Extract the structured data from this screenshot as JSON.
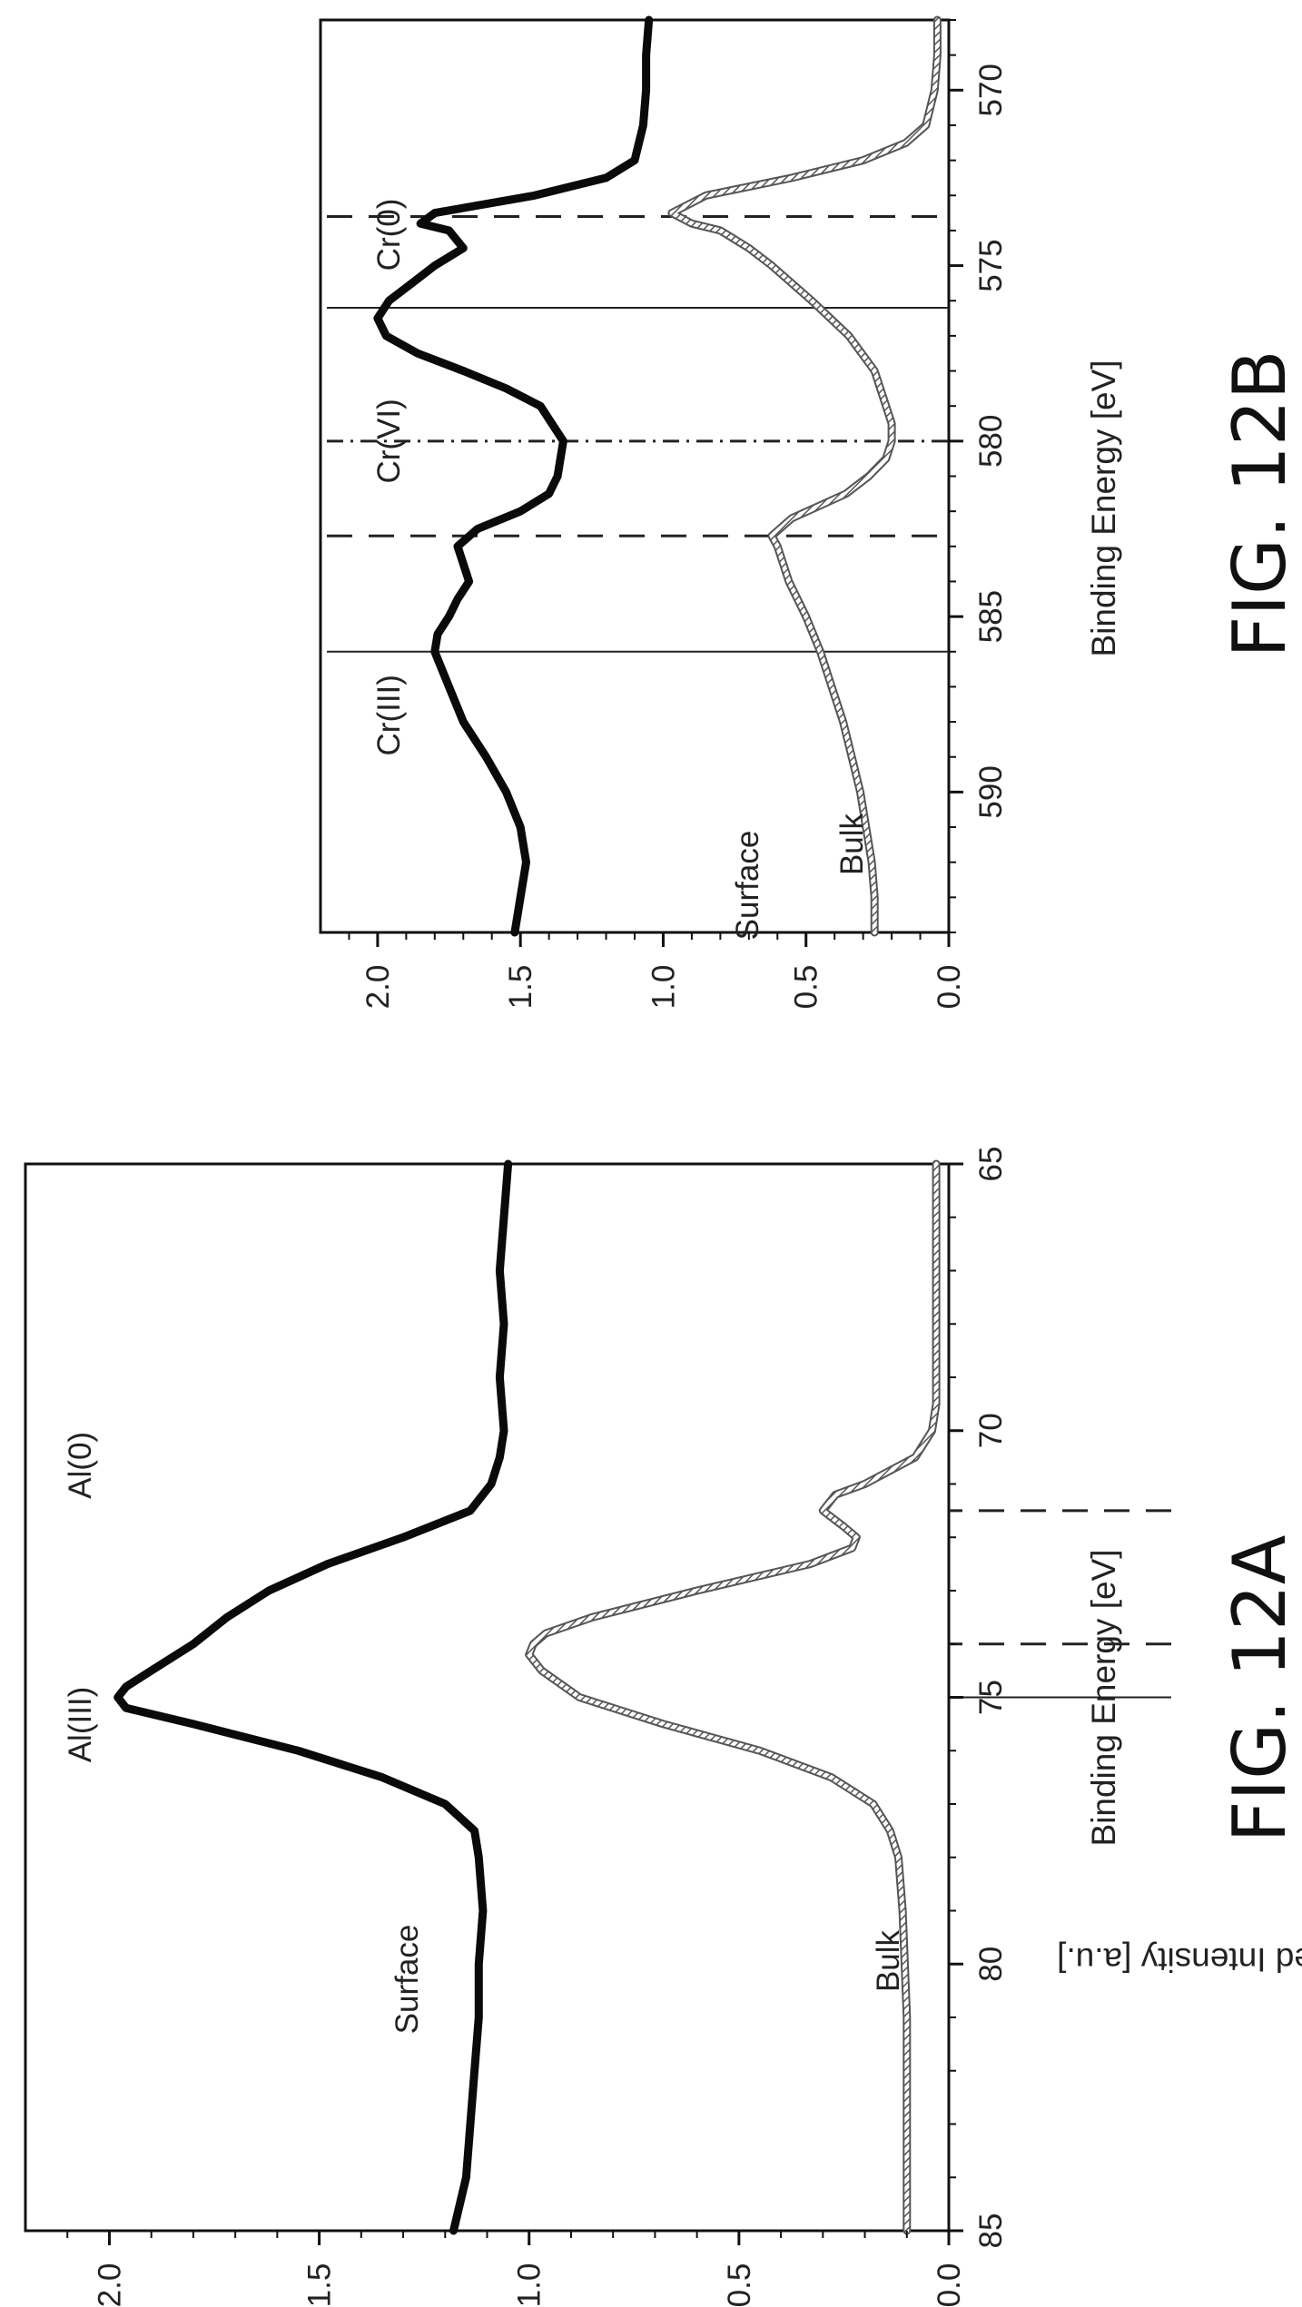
{
  "figures": [
    {
      "caption": "FIG. 12A",
      "chart_data": {
        "type": "line",
        "xlabel": "Binding Energy [eV]",
        "ylabel": "Normalized Intensity [a.u.]",
        "xlim": [
          85,
          65
        ],
        "ylim": [
          0,
          2.2
        ],
        "x_ticks": [
          "85",
          "80",
          "75",
          "70",
          "65"
        ],
        "y_ticks": [
          "0.0",
          "0.5",
          "1.0",
          "1.5",
          "2.0"
        ],
        "grid": false,
        "orientation": "rotated 90° counter-clockwise",
        "reference_lines": [
          {
            "x": 75,
            "style": "solid",
            "label": "Al(III)"
          },
          {
            "x": 74,
            "style": "dashed",
            "label": ""
          },
          {
            "x": 71.5,
            "style": "dashed",
            "label": "Al(0)"
          }
        ],
        "series": [
          {
            "name": "Surface",
            "style": "thick-black",
            "x": [
              85,
              84,
              83,
              82,
              81,
              80,
              79,
              78,
              77.5,
              77,
              76.5,
              76,
              75.5,
              75.2,
              75,
              74.8,
              74.5,
              74,
              73.5,
              73,
              72.5,
              72,
              71.5,
              71,
              70.5,
              70,
              69,
              68,
              67,
              66,
              65
            ],
            "values": [
              1.18,
              1.15,
              1.14,
              1.13,
              1.12,
              1.12,
              1.11,
              1.12,
              1.13,
              1.2,
              1.35,
              1.55,
              1.8,
              1.96,
              1.98,
              1.96,
              1.9,
              1.8,
              1.72,
              1.62,
              1.48,
              1.3,
              1.14,
              1.09,
              1.07,
              1.06,
              1.07,
              1.06,
              1.07,
              1.06,
              1.05
            ]
          },
          {
            "name": "Bulk",
            "style": "hatched-gray",
            "x": [
              85,
              83,
              81,
              79,
              78,
              77.5,
              77,
              76.5,
              76,
              75.5,
              75,
              74.5,
              74.2,
              74,
              73.8,
              73.5,
              73,
              72.5,
              72.2,
              72,
              71.8,
              71.5,
              71.2,
              71,
              70.5,
              70,
              69.5,
              69,
              68,
              67,
              66,
              65
            ],
            "values": [
              0.1,
              0.1,
              0.1,
              0.11,
              0.12,
              0.14,
              0.18,
              0.28,
              0.45,
              0.68,
              0.88,
              0.97,
              1.0,
              0.99,
              0.96,
              0.85,
              0.6,
              0.33,
              0.23,
              0.22,
              0.25,
              0.3,
              0.27,
              0.2,
              0.08,
              0.04,
              0.03,
              0.03,
              0.03,
              0.03,
              0.03,
              0.03
            ]
          }
        ]
      }
    },
    {
      "caption": "FIG. 12B",
      "chart_data": {
        "type": "line",
        "xlabel": "Binding Energy [eV]",
        "ylabel": "",
        "xlim": [
          594,
          568
        ],
        "ylim": [
          0,
          2.2
        ],
        "x_ticks": [
          "590",
          "585",
          "580",
          "575",
          "570"
        ],
        "y_ticks": [
          "0.0",
          "0.5",
          "1.0",
          "1.5",
          "2.0"
        ],
        "grid": false,
        "orientation": "rotated 90° counter-clockwise",
        "reference_lines": [
          {
            "x": 586,
            "style": "solid",
            "label": "Cr(III)"
          },
          {
            "x": 582.7,
            "style": "dashed",
            "label": ""
          },
          {
            "x": 580,
            "style": "dash-dot",
            "label": "Cr(VI)"
          },
          {
            "x": 576.2,
            "style": "solid",
            "label": ""
          },
          {
            "x": 573.6,
            "style": "dashed",
            "label": "Cr(0)"
          }
        ],
        "series": [
          {
            "name": "Surface",
            "style": "thick-black",
            "x": [
              594,
              593,
              592,
              591,
              590,
              589,
              588,
              587,
              586,
              585.5,
              585,
              584.5,
              584,
              583.5,
              583,
              582.5,
              582,
              581.5,
              581,
              580,
              579,
              578.5,
              578,
              577.5,
              577,
              576.5,
              576,
              575.5,
              575,
              574.5,
              574,
              573.8,
              573.5,
              573,
              572.5,
              572,
              571,
              570,
              569,
              568
            ],
            "values": [
              1.52,
              1.5,
              1.48,
              1.5,
              1.55,
              1.62,
              1.7,
              1.75,
              1.8,
              1.79,
              1.75,
              1.72,
              1.68,
              1.7,
              1.72,
              1.65,
              1.5,
              1.4,
              1.37,
              1.35,
              1.43,
              1.55,
              1.7,
              1.86,
              1.97,
              2.0,
              1.96,
              1.88,
              1.8,
              1.7,
              1.75,
              1.85,
              1.8,
              1.45,
              1.2,
              1.1,
              1.07,
              1.06,
              1.06,
              1.05
            ]
          },
          {
            "name": "Bulk",
            "style": "hatched-gray",
            "x": [
              594,
              593,
              592,
              591,
              590,
              589,
              588,
              587,
              586,
              585,
              584,
              583.5,
              583,
              582.7,
              582.2,
              581.5,
              581,
              580.5,
              580,
              579.5,
              579,
              578,
              577,
              576,
              575,
              574.5,
              574,
              573.8,
              573.5,
              573,
              572.5,
              572,
              571.5,
              571,
              570,
              569,
              568
            ],
            "values": [
              0.26,
              0.26,
              0.27,
              0.29,
              0.31,
              0.34,
              0.37,
              0.41,
              0.45,
              0.5,
              0.56,
              0.58,
              0.6,
              0.62,
              0.55,
              0.36,
              0.28,
              0.22,
              0.2,
              0.2,
              0.22,
              0.26,
              0.35,
              0.48,
              0.62,
              0.7,
              0.8,
              0.9,
              0.97,
              0.85,
              0.55,
              0.3,
              0.15,
              0.08,
              0.05,
              0.04,
              0.04
            ]
          }
        ]
      }
    }
  ]
}
